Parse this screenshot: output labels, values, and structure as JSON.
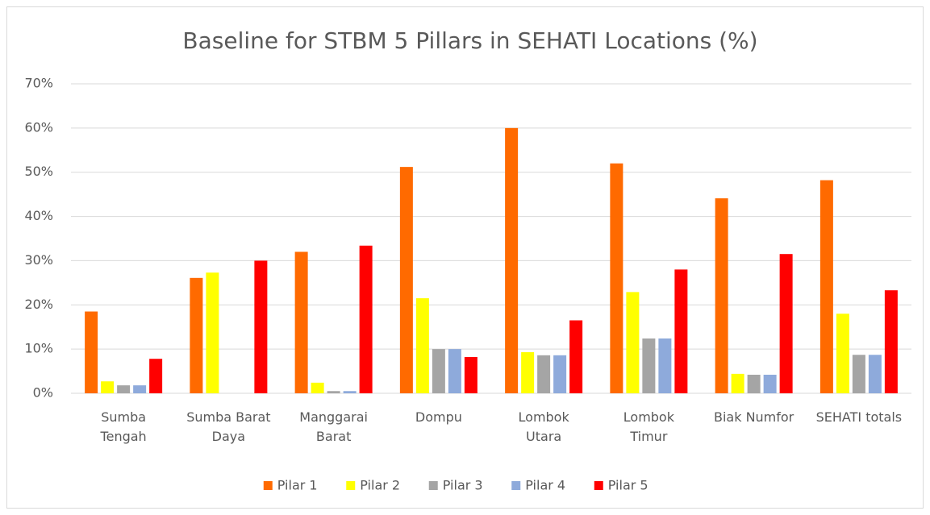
{
  "chart_data": {
    "type": "bar",
    "title": "Baseline for STBM 5 Pillars in SEHATI Locations (%)",
    "categories": [
      "Sumba\nTengah",
      "Sumba Barat\nDaya",
      "Manggarai\nBarat",
      "Dompu",
      "Lombok\nUtara",
      "Lombok\nTimur",
      "Biak Numfor",
      "SEHATI totals"
    ],
    "series": [
      {
        "name": "Pilar 1",
        "color": "#ff6a00",
        "values": [
          18.5,
          26.1,
          32,
          51.2,
          60,
          52,
          44.1,
          48.2
        ]
      },
      {
        "name": "Pilar 2",
        "color": "#ffff00",
        "values": [
          2.7,
          27.3,
          2.4,
          21.5,
          9.3,
          22.9,
          4.4,
          18
        ]
      },
      {
        "name": "Pilar 3",
        "color": "#a5a5a5",
        "values": [
          1.8,
          0,
          0.5,
          10,
          8.6,
          12.4,
          4.2,
          8.7
        ]
      },
      {
        "name": "Pilar 4",
        "color": "#8eaadb",
        "values": [
          1.8,
          0,
          0.5,
          10,
          8.6,
          12.4,
          4.2,
          8.7
        ]
      },
      {
        "name": "Pilar 5",
        "color": "#ff0000",
        "values": [
          7.8,
          30,
          33.4,
          8.2,
          16.5,
          28,
          31.5,
          23.3
        ]
      }
    ],
    "ylim": [
      0,
      70
    ],
    "yticks": [
      {
        "value": 0,
        "label": "0%"
      },
      {
        "value": 10,
        "label": "10%"
      },
      {
        "value": 20,
        "label": "20%"
      },
      {
        "value": 30,
        "label": "30%"
      },
      {
        "value": 40,
        "label": "40%"
      },
      {
        "value": 50,
        "label": "50%"
      },
      {
        "value": 60,
        "label": "60%"
      },
      {
        "value": 70,
        "label": "70%"
      }
    ],
    "grid": true,
    "legend": "bottom"
  }
}
